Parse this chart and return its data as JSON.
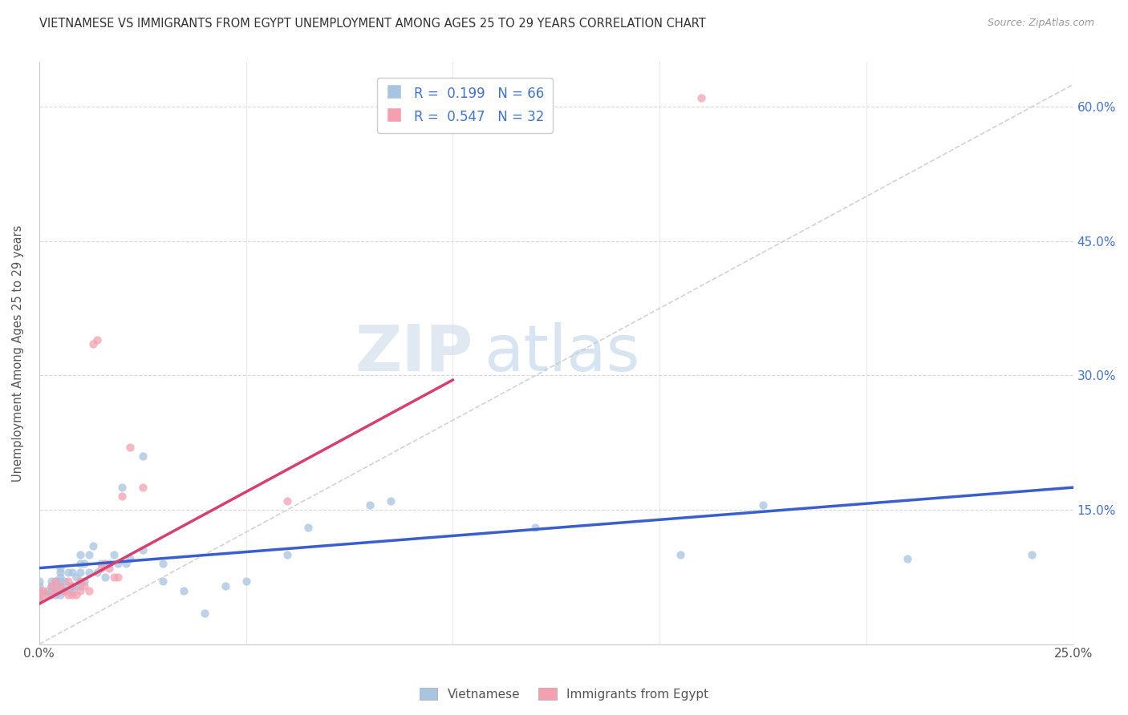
{
  "title": "VIETNAMESE VS IMMIGRANTS FROM EGYPT UNEMPLOYMENT AMONG AGES 25 TO 29 YEARS CORRELATION CHART",
  "source": "Source: ZipAtlas.com",
  "ylabel": "Unemployment Among Ages 25 to 29 years",
  "xlim": [
    0.0,
    0.25
  ],
  "ylim": [
    0.0,
    0.65
  ],
  "r1": 0.199,
  "n1": 66,
  "r2": 0.547,
  "n2": 32,
  "color_vietnamese": "#a8c4e0",
  "color_egypt": "#f4a0b0",
  "color_line_vietnamese": "#3a5fcd",
  "color_line_egypt": "#d44070",
  "color_diag": "#c8c8c8",
  "color_axis_right": "#4472c4",
  "watermark_zip": "ZIP",
  "watermark_atlas": "atlas",
  "scatter_vietnamese_x": [
    0.0,
    0.0,
    0.0,
    0.0,
    0.0,
    0.002,
    0.002,
    0.003,
    0.003,
    0.003,
    0.004,
    0.004,
    0.004,
    0.004,
    0.005,
    0.005,
    0.005,
    0.005,
    0.005,
    0.005,
    0.005,
    0.006,
    0.006,
    0.007,
    0.007,
    0.007,
    0.008,
    0.008,
    0.008,
    0.009,
    0.009,
    0.01,
    0.01,
    0.01,
    0.01,
    0.011,
    0.011,
    0.012,
    0.012,
    0.013,
    0.014,
    0.015,
    0.016,
    0.017,
    0.018,
    0.019,
    0.02,
    0.021,
    0.022,
    0.025,
    0.025,
    0.03,
    0.03,
    0.035,
    0.04,
    0.045,
    0.05,
    0.06,
    0.065,
    0.08,
    0.085,
    0.12,
    0.155,
    0.175,
    0.21,
    0.24
  ],
  "scatter_vietnamese_y": [
    0.05,
    0.055,
    0.06,
    0.065,
    0.07,
    0.055,
    0.06,
    0.06,
    0.065,
    0.07,
    0.055,
    0.06,
    0.065,
    0.07,
    0.055,
    0.06,
    0.065,
    0.07,
    0.075,
    0.08,
    0.085,
    0.06,
    0.07,
    0.06,
    0.065,
    0.08,
    0.06,
    0.065,
    0.08,
    0.065,
    0.075,
    0.065,
    0.08,
    0.09,
    0.1,
    0.07,
    0.09,
    0.08,
    0.1,
    0.11,
    0.08,
    0.09,
    0.075,
    0.09,
    0.1,
    0.09,
    0.175,
    0.09,
    0.095,
    0.105,
    0.21,
    0.07,
    0.09,
    0.06,
    0.035,
    0.065,
    0.07,
    0.1,
    0.13,
    0.155,
    0.16,
    0.13,
    0.1,
    0.155,
    0.095,
    0.1
  ],
  "scatter_egypt_x": [
    0.0,
    0.0,
    0.0,
    0.001,
    0.001,
    0.003,
    0.003,
    0.004,
    0.004,
    0.005,
    0.006,
    0.007,
    0.007,
    0.008,
    0.008,
    0.009,
    0.01,
    0.01,
    0.011,
    0.012,
    0.013,
    0.014,
    0.015,
    0.016,
    0.017,
    0.018,
    0.019,
    0.02,
    0.022,
    0.025,
    0.06,
    0.16
  ],
  "scatter_egypt_y": [
    0.05,
    0.055,
    0.06,
    0.055,
    0.06,
    0.055,
    0.065,
    0.06,
    0.07,
    0.065,
    0.06,
    0.055,
    0.07,
    0.055,
    0.065,
    0.055,
    0.06,
    0.07,
    0.065,
    0.06,
    0.335,
    0.34,
    0.085,
    0.09,
    0.085,
    0.075,
    0.075,
    0.165,
    0.22,
    0.175,
    0.16,
    0.61
  ],
  "line_viet_x0": 0.0,
  "line_viet_y0": 0.085,
  "line_viet_x1": 0.25,
  "line_viet_y1": 0.175,
  "line_egypt_x0": 0.0,
  "line_egypt_y0": 0.045,
  "line_egypt_x1": 0.1,
  "line_egypt_y1": 0.295
}
